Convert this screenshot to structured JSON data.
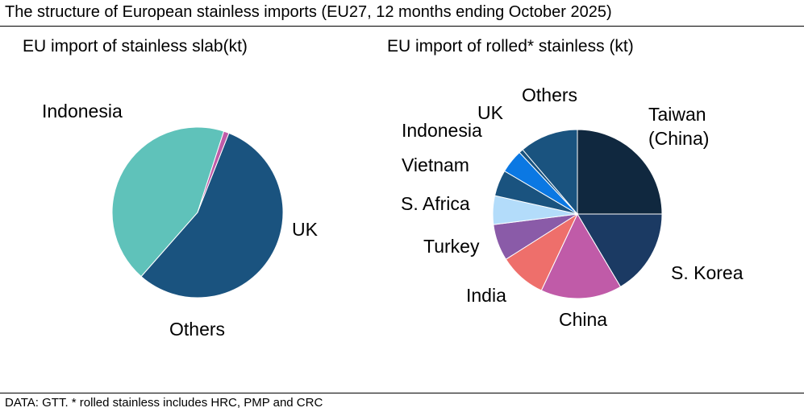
{
  "title": "The structure of European stainless imports (EU27, 12 months ending October 2025)",
  "footer": "DATA: GTT. * rolled stainless includes HRC, PMP and CRC",
  "chart_data": [
    {
      "type": "pie",
      "title": "EU import of stainless slab(kt)",
      "slices": [
        {
          "label": [
            "Indonesia"
          ],
          "value": 55.5,
          "color": "#1a537f"
        },
        {
          "label": [
            "UK"
          ],
          "value": 43.5,
          "color": "#5fc2ba"
        },
        {
          "label": [
            "Others"
          ],
          "value": 1.0,
          "color": "#c05ba8"
        }
      ],
      "direction": "clockwise",
      "first_slice_at": "1 o'clock",
      "legend": "none"
    },
    {
      "type": "pie",
      "title": "EU import of rolled* stainless (kt)",
      "slices": [
        {
          "label": [
            "Taiwan",
            "(China)"
          ],
          "value": 25.0,
          "color": "#10283f"
        },
        {
          "label": [
            "S. Korea"
          ],
          "value": 16.5,
          "color": "#1b3a63"
        },
        {
          "label": [
            "China"
          ],
          "value": 15.5,
          "color": "#c05ba8"
        },
        {
          "label": [
            "India"
          ],
          "value": 9.0,
          "color": "#ee6f6b"
        },
        {
          "label": [
            "Turkey"
          ],
          "value": 7.0,
          "color": "#8a5ba8"
        },
        {
          "label": [
            "S. Africa"
          ],
          "value": 5.5,
          "color": "#b3dcfa"
        },
        {
          "label": [
            "Vietnam"
          ],
          "value": 5.0,
          "color": "#1a537f"
        },
        {
          "label": [
            "Indonesia"
          ],
          "value": 4.5,
          "color": "#0b78e3"
        },
        {
          "label": [
            "UK"
          ],
          "value": 0.8,
          "color": "#1a537f"
        },
        {
          "label": [
            "Others"
          ],
          "value": 11.2,
          "color": "#1a537f"
        }
      ],
      "direction": "clockwise",
      "first_slice_at": "12 o'clock",
      "legend": "none"
    }
  ]
}
